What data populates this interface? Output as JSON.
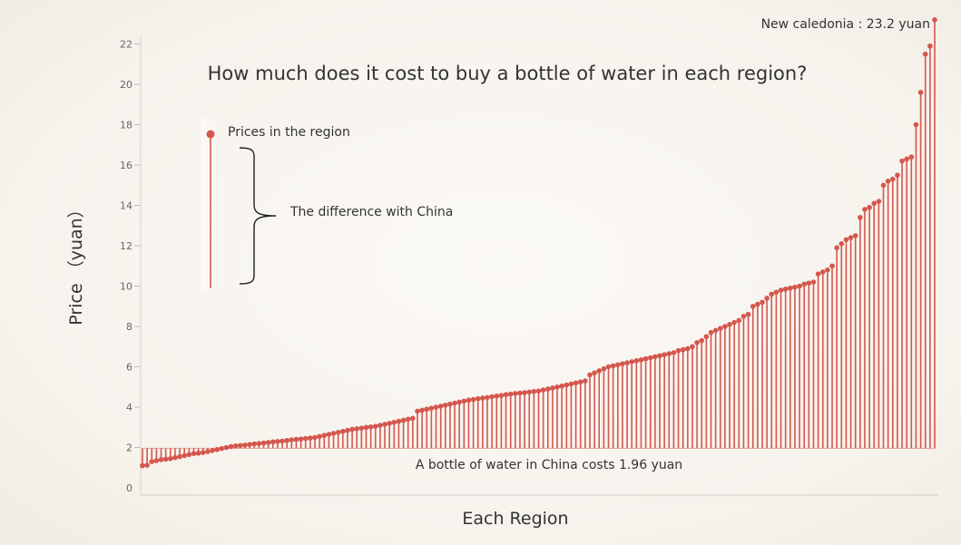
{
  "chart_data": {
    "type": "lollipop",
    "title": "How much does it cost to buy a bottle of water in each region?",
    "xlabel": "Each Region",
    "ylabel": "Price （yuan）",
    "ylim": [
      0,
      23.5
    ],
    "yticks": [
      0,
      2,
      4,
      6,
      8,
      10,
      12,
      14,
      16,
      18,
      20,
      22
    ],
    "baseline": 1.96,
    "baseline_label": "A bottle of water in  China  costs 1.96 yuan",
    "max_label": "New caledonia : 23.2 yuan",
    "legend": {
      "point_label": "Prices in the region",
      "line_label": "The difference with China"
    },
    "colors": {
      "mark": "#d4574e",
      "axis": "#cfc9c2",
      "text": "#333333"
    },
    "values": [
      1.1,
      1.12,
      1.3,
      1.35,
      1.4,
      1.42,
      1.45,
      1.5,
      1.55,
      1.6,
      1.65,
      1.7,
      1.72,
      1.75,
      1.8,
      1.85,
      1.9,
      1.95,
      2.0,
      2.05,
      2.08,
      2.1,
      2.12,
      2.15,
      2.18,
      2.2,
      2.22,
      2.25,
      2.28,
      2.3,
      2.32,
      2.35,
      2.38,
      2.4,
      2.42,
      2.45,
      2.47,
      2.5,
      2.55,
      2.6,
      2.65,
      2.7,
      2.75,
      2.8,
      2.85,
      2.9,
      2.93,
      2.96,
      3.0,
      3.02,
      3.05,
      3.1,
      3.15,
      3.2,
      3.25,
      3.3,
      3.35,
      3.4,
      3.45,
      3.8,
      3.85,
      3.9,
      3.95,
      4.0,
      4.05,
      4.1,
      4.15,
      4.2,
      4.25,
      4.3,
      4.35,
      4.38,
      4.42,
      4.45,
      4.48,
      4.52,
      4.55,
      4.58,
      4.62,
      4.65,
      4.68,
      4.7,
      4.72,
      4.75,
      4.78,
      4.8,
      4.85,
      4.9,
      4.95,
      5.0,
      5.05,
      5.1,
      5.15,
      5.2,
      5.25,
      5.3,
      5.6,
      5.7,
      5.8,
      5.9,
      6.0,
      6.05,
      6.1,
      6.15,
      6.2,
      6.25,
      6.3,
      6.35,
      6.4,
      6.45,
      6.5,
      6.55,
      6.6,
      6.65,
      6.7,
      6.8,
      6.85,
      6.9,
      7.0,
      7.2,
      7.3,
      7.5,
      7.7,
      7.8,
      7.9,
      8.0,
      8.1,
      8.2,
      8.3,
      8.5,
      8.6,
      9.0,
      9.1,
      9.2,
      9.4,
      9.6,
      9.7,
      9.8,
      9.85,
      9.9,
      9.95,
      10.0,
      10.1,
      10.15,
      10.2,
      10.6,
      10.7,
      10.8,
      11.0,
      11.9,
      12.1,
      12.3,
      12.4,
      12.5,
      13.4,
      13.8,
      13.9,
      14.1,
      14.2,
      15.0,
      15.2,
      15.3,
      15.5,
      16.2,
      16.3,
      16.4,
      18.0,
      19.6,
      21.5,
      21.9,
      23.2
    ]
  }
}
